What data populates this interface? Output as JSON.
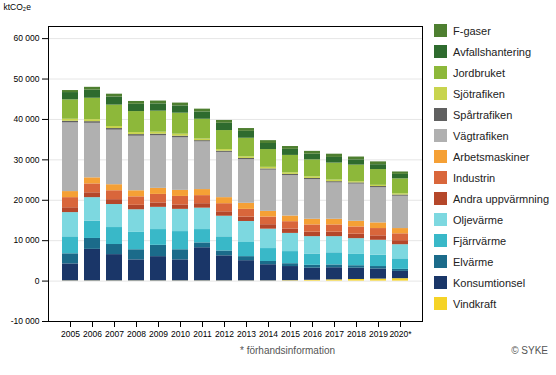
{
  "chart_data": {
    "type": "bar",
    "stacked": true,
    "grid": true,
    "legend": "right",
    "ylabel": "ktCO₂e",
    "annotations": [
      "* förhandsinformation",
      "© SYKE"
    ],
    "categories": [
      "2005",
      "2006",
      "2007",
      "2008",
      "2009",
      "2010",
      "2011",
      "2012",
      "2013",
      "2014",
      "2015",
      "2016",
      "2017",
      "2018",
      "2019",
      "2020*"
    ],
    "series": [
      {
        "name": "Vindkraft",
        "color": "#f5d327",
        "values": [
          50,
          50,
          50,
          50,
          50,
          50,
          50,
          50,
          50,
          50,
          100,
          200,
          300,
          400,
          500,
          600
        ]
      },
      {
        "name": "Konsumtionsel",
        "color": "#1a3668",
        "values": [
          4200,
          7800,
          6500,
          5200,
          6000,
          5200,
          8200,
          6200,
          5000,
          4000,
          3500,
          3000,
          3000,
          2800,
          2500,
          1800
        ]
      },
      {
        "name": "Elvärme",
        "color": "#1b6b8a",
        "values": [
          2500,
          2700,
          2500,
          2500,
          2800,
          2500,
          1200,
          1200,
          1000,
          800,
          700,
          700,
          700,
          600,
          600,
          500
        ]
      },
      {
        "name": "Fjärrvärme",
        "color": "#39b8c8",
        "values": [
          4200,
          4300,
          4200,
          4300,
          3900,
          4500,
          3300,
          3500,
          3500,
          3200,
          3000,
          2800,
          3000,
          2800,
          2800,
          2600
        ]
      },
      {
        "name": "Oljevärme",
        "color": "#7dd8e0",
        "values": [
          6000,
          5800,
          5700,
          5600,
          5500,
          5500,
          5300,
          5100,
          5200,
          4800,
          4500,
          4300,
          4000,
          3900,
          3700,
          3500
        ]
      },
      {
        "name": "Andra uppvärmning",
        "color": "#b5472a",
        "values": [
          1200,
          1200,
          1200,
          1100,
          1100,
          1100,
          1100,
          1100,
          1100,
          1100,
          1100,
          1100,
          1100,
          1100,
          1100,
          1000
        ]
      },
      {
        "name": "Industrin",
        "color": "#d9663b",
        "values": [
          2500,
          2200,
          2200,
          2100,
          2100,
          2100,
          2000,
          2000,
          1900,
          1900,
          1800,
          1800,
          1800,
          1800,
          1800,
          1700
        ]
      },
      {
        "name": "Arbetsmaskiner",
        "color": "#f5a035",
        "values": [
          1500,
          1500,
          1500,
          1500,
          1500,
          1500,
          1500,
          1500,
          1500,
          1400,
          1400,
          1400,
          1400,
          1400,
          1400,
          1300
        ]
      },
      {
        "name": "Vägtrafiken",
        "color": "#b0b0b0",
        "values": [
          17000,
          13500,
          13500,
          13500,
          13000,
          13000,
          11800,
          11200,
          10800,
          10200,
          10000,
          9800,
          9000,
          9200,
          8700,
          8000
        ]
      },
      {
        "name": "Spårtrafiken",
        "color": "#606060",
        "values": [
          400,
          400,
          400,
          400,
          400,
          400,
          300,
          300,
          300,
          300,
          300,
          300,
          300,
          300,
          300,
          300
        ]
      },
      {
        "name": "Sjötrafiken",
        "color": "#c8d44e",
        "values": [
          500,
          500,
          500,
          500,
          500,
          500,
          400,
          400,
          400,
          400,
          400,
          400,
          400,
          300,
          300,
          300
        ]
      },
      {
        "name": "Jordbruket",
        "color": "#8db83a",
        "values": [
          4800,
          5300,
          5300,
          5200,
          5200,
          5200,
          4900,
          4700,
          4600,
          4400,
          4300,
          4200,
          4200,
          4100,
          3900,
          3700
        ]
      },
      {
        "name": "Avfallshantering",
        "color": "#2e6b2e",
        "values": [
          1800,
          2000,
          2000,
          1800,
          1800,
          1800,
          1800,
          1800,
          1700,
          1500,
          1500,
          1400,
          1400,
          1300,
          1200,
          1100
        ]
      },
      {
        "name": "F-gaser",
        "color": "#4e7f30",
        "values": [
          500,
          700,
          700,
          700,
          700,
          700,
          700,
          700,
          700,
          700,
          700,
          700,
          800,
          700,
          700,
          600
        ]
      }
    ],
    "ylim": [
      -10000,
      63000
    ],
    "yticks": [
      {
        "value": -10000,
        "label": "-10 000"
      },
      0,
      {
        "value": 10000,
        "label": "10 000"
      },
      {
        "value": 20000,
        "label": "20 000"
      },
      {
        "value": 30000,
        "label": "30 000"
      },
      {
        "value": 40000,
        "label": "40 000"
      },
      {
        "value": 50000,
        "label": "50 000"
      },
      {
        "value": 60000,
        "label": "60 000"
      }
    ]
  }
}
